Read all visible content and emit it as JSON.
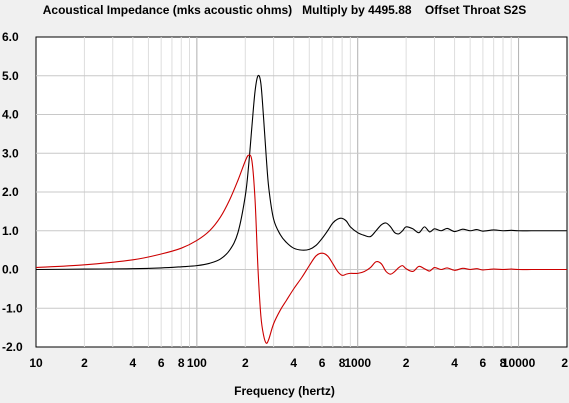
{
  "chart_data": {
    "type": "line",
    "title": "Acoustical Impedance (mks acoustic ohms)   Multiply by 4495.88    Offset Throat S2S",
    "xlabel": "Frequency (hertz)",
    "ylabel": "",
    "x_scale": "log",
    "xlim": [
      10,
      20000
    ],
    "ylim": [
      -2.0,
      6.0
    ],
    "grid": true,
    "legend": "none",
    "y_ticks": [
      "6.0",
      "5.0",
      "4.0",
      "3.0",
      "2.0",
      "1.0",
      "0.0",
      "-1.0",
      "-2.0"
    ],
    "y_tick_values": [
      6,
      5,
      4,
      3,
      2,
      1,
      0,
      -1,
      -2
    ],
    "x_ticks": [
      "10",
      "2",
      "4",
      "6",
      "8",
      "100",
      "2",
      "4",
      "6",
      "8",
      "1000",
      "2",
      "4",
      "6",
      "8",
      "10000",
      "2"
    ],
    "x_tick_values": [
      10,
      20,
      40,
      60,
      80,
      100,
      200,
      400,
      600,
      800,
      1000,
      2000,
      4000,
      6000,
      8000,
      10000,
      20000
    ],
    "series": [
      {
        "color": "#000000",
        "x": [
          10,
          20,
          40,
          60,
          80,
          100,
          120,
          140,
          160,
          180,
          200,
          210,
          220,
          230,
          240,
          250,
          260,
          270,
          280,
          300,
          330,
          360,
          400,
          450,
          500,
          550,
          600,
          650,
          700,
          750,
          800,
          850,
          900,
          1000,
          1100,
          1200,
          1300,
          1400,
          1500,
          1600,
          1700,
          1800,
          1900,
          2000,
          2200,
          2400,
          2600,
          2800,
          3000,
          3300,
          3600,
          4000,
          4500,
          5000,
          5500,
          6000,
          7000,
          8000,
          9000,
          10000,
          12000,
          14000,
          16000,
          18000,
          20000
        ],
        "values": [
          0.0,
          0.01,
          0.02,
          0.04,
          0.07,
          0.1,
          0.16,
          0.27,
          0.5,
          0.95,
          1.9,
          2.7,
          3.7,
          4.6,
          5.0,
          4.8,
          3.9,
          2.9,
          2.1,
          1.3,
          0.9,
          0.7,
          0.55,
          0.5,
          0.52,
          0.62,
          0.8,
          1.0,
          1.2,
          1.3,
          1.32,
          1.25,
          1.1,
          0.95,
          0.88,
          0.85,
          1.0,
          1.15,
          1.2,
          1.1,
          0.95,
          0.92,
          1.0,
          1.1,
          1.05,
          0.95,
          1.1,
          0.97,
          1.05,
          1.0,
          1.06,
          0.98,
          1.04,
          1.0,
          1.03,
          0.99,
          1.02,
          1.0,
          1.01,
          1.0,
          1.0,
          1.0,
          1.0,
          1.0,
          1.0
        ]
      },
      {
        "color": "#cc0000",
        "x": [
          10,
          20,
          40,
          60,
          80,
          100,
          120,
          140,
          160,
          180,
          200,
          210,
          220,
          230,
          240,
          250,
          260,
          270,
          280,
          300,
          330,
          360,
          400,
          450,
          500,
          550,
          600,
          650,
          700,
          750,
          800,
          850,
          900,
          1000,
          1100,
          1200,
          1300,
          1400,
          1500,
          1600,
          1700,
          1800,
          1900,
          2000,
          2200,
          2400,
          2600,
          2800,
          3000,
          3300,
          3600,
          4000,
          4500,
          5000,
          5500,
          6000,
          7000,
          8000,
          9000,
          10000,
          12000,
          14000,
          16000,
          18000,
          20000
        ],
        "values": [
          0.05,
          0.12,
          0.25,
          0.4,
          0.55,
          0.75,
          1.0,
          1.35,
          1.8,
          2.3,
          2.8,
          2.95,
          2.8,
          1.8,
          0.0,
          -1.2,
          -1.7,
          -1.9,
          -1.8,
          -1.4,
          -1.05,
          -0.8,
          -0.5,
          -0.2,
          0.1,
          0.35,
          0.42,
          0.35,
          0.15,
          -0.05,
          -0.15,
          -0.12,
          -0.1,
          -0.1,
          -0.05,
          0.05,
          0.2,
          0.15,
          -0.05,
          -0.12,
          -0.05,
          0.05,
          0.1,
          0.02,
          -0.05,
          0.08,
          0.02,
          -0.04,
          0.05,
          0.0,
          0.04,
          -0.02,
          0.03,
          0.0,
          0.02,
          -0.01,
          0.01,
          0.0,
          0.01,
          0.0,
          0.0,
          0.0,
          0.0,
          0.0,
          0.0
        ]
      }
    ]
  }
}
